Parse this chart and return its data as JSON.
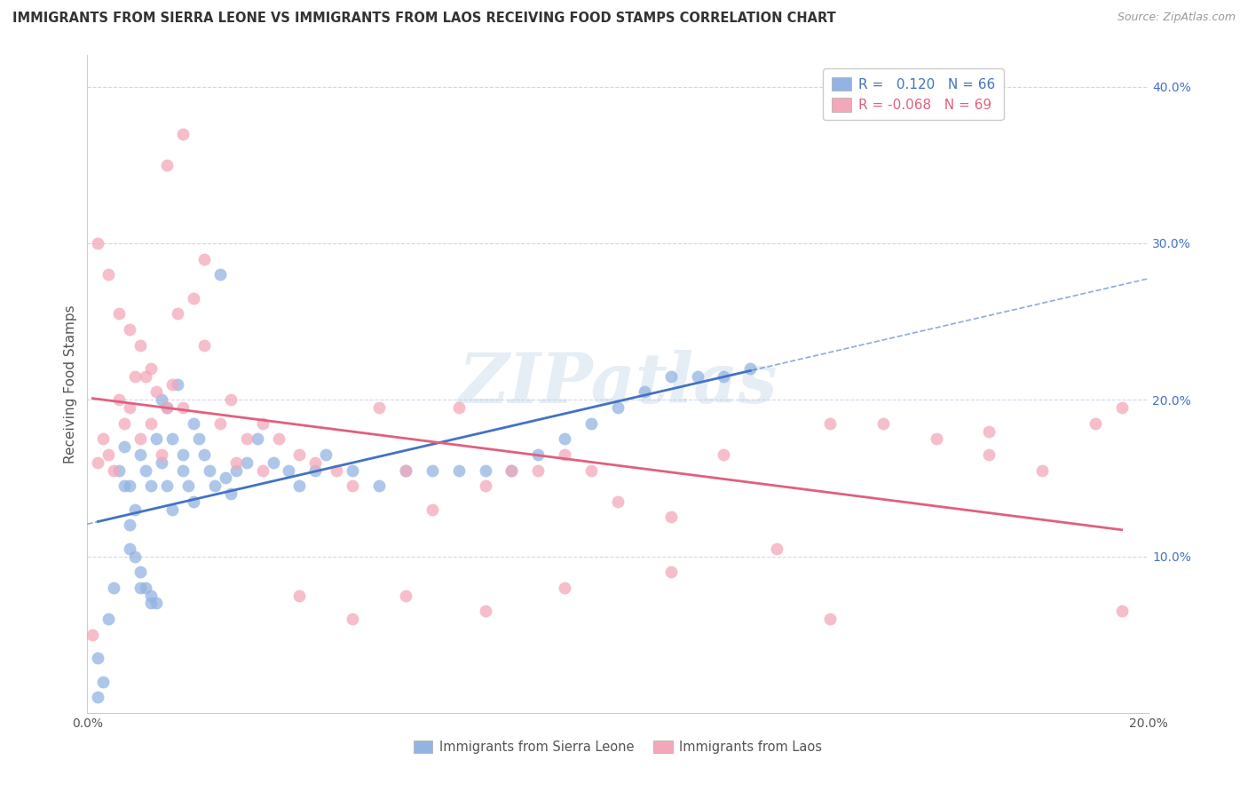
{
  "title": "IMMIGRANTS FROM SIERRA LEONE VS IMMIGRANTS FROM LAOS RECEIVING FOOD STAMPS CORRELATION CHART",
  "source": "Source: ZipAtlas.com",
  "ylabel": "Receiving Food Stamps",
  "xlim": [
    0.0,
    0.2
  ],
  "ylim": [
    0.0,
    0.42
  ],
  "sierra_leone_R": 0.12,
  "sierra_leone_N": 66,
  "laos_R": -0.068,
  "laos_N": 69,
  "sierra_leone_color": "#92b4e3",
  "laos_color": "#f4a7b9",
  "sierra_leone_line_color": "#4472c4",
  "laos_line_color": "#e0607e",
  "background_color": "#ffffff",
  "grid_color": "#d0d8e8",
  "legend_label1": "Immigrants from Sierra Leone",
  "legend_label2": "Immigrants from Laos",
  "watermark": "ZIPatlas",
  "sierra_leone_x": [
    0.002,
    0.004,
    0.005,
    0.006,
    0.007,
    0.007,
    0.008,
    0.008,
    0.009,
    0.009,
    0.01,
    0.01,
    0.011,
    0.011,
    0.012,
    0.012,
    0.013,
    0.013,
    0.014,
    0.014,
    0.015,
    0.015,
    0.016,
    0.016,
    0.017,
    0.018,
    0.018,
    0.019,
    0.02,
    0.021,
    0.022,
    0.023,
    0.024,
    0.025,
    0.026,
    0.027,
    0.028,
    0.03,
    0.032,
    0.035,
    0.038,
    0.04,
    0.043,
    0.045,
    0.05,
    0.055,
    0.06,
    0.065,
    0.07,
    0.075,
    0.08,
    0.085,
    0.09,
    0.095,
    0.1,
    0.105,
    0.11,
    0.115,
    0.12,
    0.125,
    0.002,
    0.003,
    0.008,
    0.01,
    0.012,
    0.02
  ],
  "sierra_leone_y": [
    0.035,
    0.06,
    0.08,
    0.155,
    0.145,
    0.17,
    0.12,
    0.145,
    0.1,
    0.13,
    0.09,
    0.165,
    0.08,
    0.155,
    0.075,
    0.145,
    0.07,
    0.175,
    0.2,
    0.16,
    0.195,
    0.145,
    0.175,
    0.13,
    0.21,
    0.165,
    0.155,
    0.145,
    0.185,
    0.175,
    0.165,
    0.155,
    0.145,
    0.28,
    0.15,
    0.14,
    0.155,
    0.16,
    0.175,
    0.16,
    0.155,
    0.145,
    0.155,
    0.165,
    0.155,
    0.145,
    0.155,
    0.155,
    0.155,
    0.155,
    0.155,
    0.165,
    0.175,
    0.185,
    0.195,
    0.205,
    0.215,
    0.215,
    0.215,
    0.22,
    0.01,
    0.02,
    0.105,
    0.08,
    0.07,
    0.135
  ],
  "laos_x": [
    0.001,
    0.002,
    0.003,
    0.004,
    0.005,
    0.006,
    0.007,
    0.008,
    0.009,
    0.01,
    0.011,
    0.012,
    0.013,
    0.014,
    0.015,
    0.016,
    0.017,
    0.018,
    0.02,
    0.022,
    0.025,
    0.028,
    0.03,
    0.033,
    0.036,
    0.04,
    0.043,
    0.047,
    0.05,
    0.055,
    0.06,
    0.065,
    0.07,
    0.075,
    0.08,
    0.085,
    0.09,
    0.095,
    0.1,
    0.11,
    0.12,
    0.13,
    0.14,
    0.15,
    0.16,
    0.17,
    0.18,
    0.19,
    0.002,
    0.004,
    0.006,
    0.008,
    0.01,
    0.012,
    0.015,
    0.018,
    0.022,
    0.027,
    0.033,
    0.04,
    0.05,
    0.06,
    0.075,
    0.09,
    0.11,
    0.14,
    0.17,
    0.195,
    0.195
  ],
  "laos_y": [
    0.05,
    0.16,
    0.175,
    0.165,
    0.155,
    0.2,
    0.185,
    0.195,
    0.215,
    0.175,
    0.215,
    0.185,
    0.205,
    0.165,
    0.195,
    0.21,
    0.255,
    0.195,
    0.265,
    0.235,
    0.185,
    0.16,
    0.175,
    0.185,
    0.175,
    0.165,
    0.16,
    0.155,
    0.145,
    0.195,
    0.155,
    0.13,
    0.195,
    0.145,
    0.155,
    0.155,
    0.165,
    0.155,
    0.135,
    0.125,
    0.165,
    0.105,
    0.185,
    0.185,
    0.175,
    0.165,
    0.155,
    0.185,
    0.3,
    0.28,
    0.255,
    0.245,
    0.235,
    0.22,
    0.35,
    0.37,
    0.29,
    0.2,
    0.155,
    0.075,
    0.06,
    0.075,
    0.065,
    0.08,
    0.09,
    0.06,
    0.18,
    0.195,
    0.065
  ]
}
